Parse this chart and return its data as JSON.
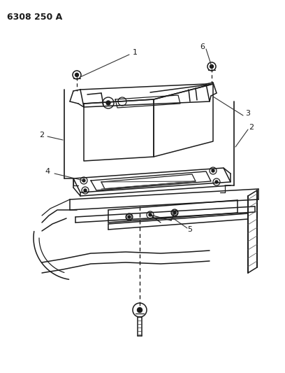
{
  "title": "6308 250 A",
  "bg_color": "#ffffff",
  "line_color": "#1a1a1a",
  "lw": 1.1,
  "figsize": [
    4.08,
    5.33
  ],
  "dpi": 100
}
